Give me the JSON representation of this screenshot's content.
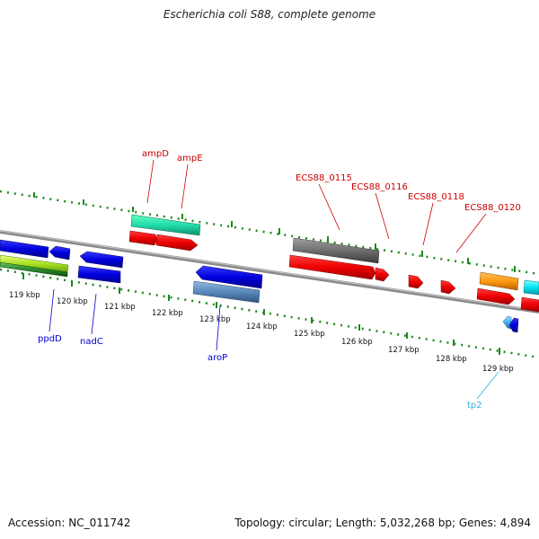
{
  "title": "Escherichia coli S88, complete genome",
  "footer": {
    "accession": "Accession: NC_011742",
    "summary": "Topology: circular; Length: 5,032,268 bp; Genes: 4,894"
  },
  "colors": {
    "backbone": "#8a8a8a",
    "ticks": "#1c8a1c",
    "label_red": "#cc0000",
    "label_blue": "#0000cc",
    "label_cyan": "#33aadd"
  },
  "scale": {
    "unit": "kbp",
    "labels": [
      "119 kbp",
      "120 kbp",
      "121 kbp",
      "122 kbp",
      "123 kbp",
      "124 kbp",
      "125 kbp",
      "126 kbp",
      "127 kbp",
      "128 kbp",
      "129 kbp"
    ]
  },
  "gene_labels": [
    {
      "name": "ampD",
      "strand": "forward",
      "color_key": "label_red"
    },
    {
      "name": "ampE",
      "strand": "forward",
      "color_key": "label_red"
    },
    {
      "name": "ECS88_0115",
      "strand": "forward",
      "color_key": "label_red"
    },
    {
      "name": "ECS88_0116",
      "strand": "forward",
      "color_key": "label_red"
    },
    {
      "name": "ECS88_0118",
      "strand": "forward",
      "color_key": "label_red"
    },
    {
      "name": "ECS88_0120",
      "strand": "forward",
      "color_key": "label_red"
    },
    {
      "name": "ppdD",
      "strand": "reverse",
      "color_key": "label_blue"
    },
    {
      "name": "nadC",
      "strand": "reverse",
      "color_key": "label_blue"
    },
    {
      "name": "aroP",
      "strand": "reverse",
      "color_key": "label_blue"
    },
    {
      "name": "tp2",
      "strand": "reverse",
      "color_key": "label_cyan"
    }
  ]
}
